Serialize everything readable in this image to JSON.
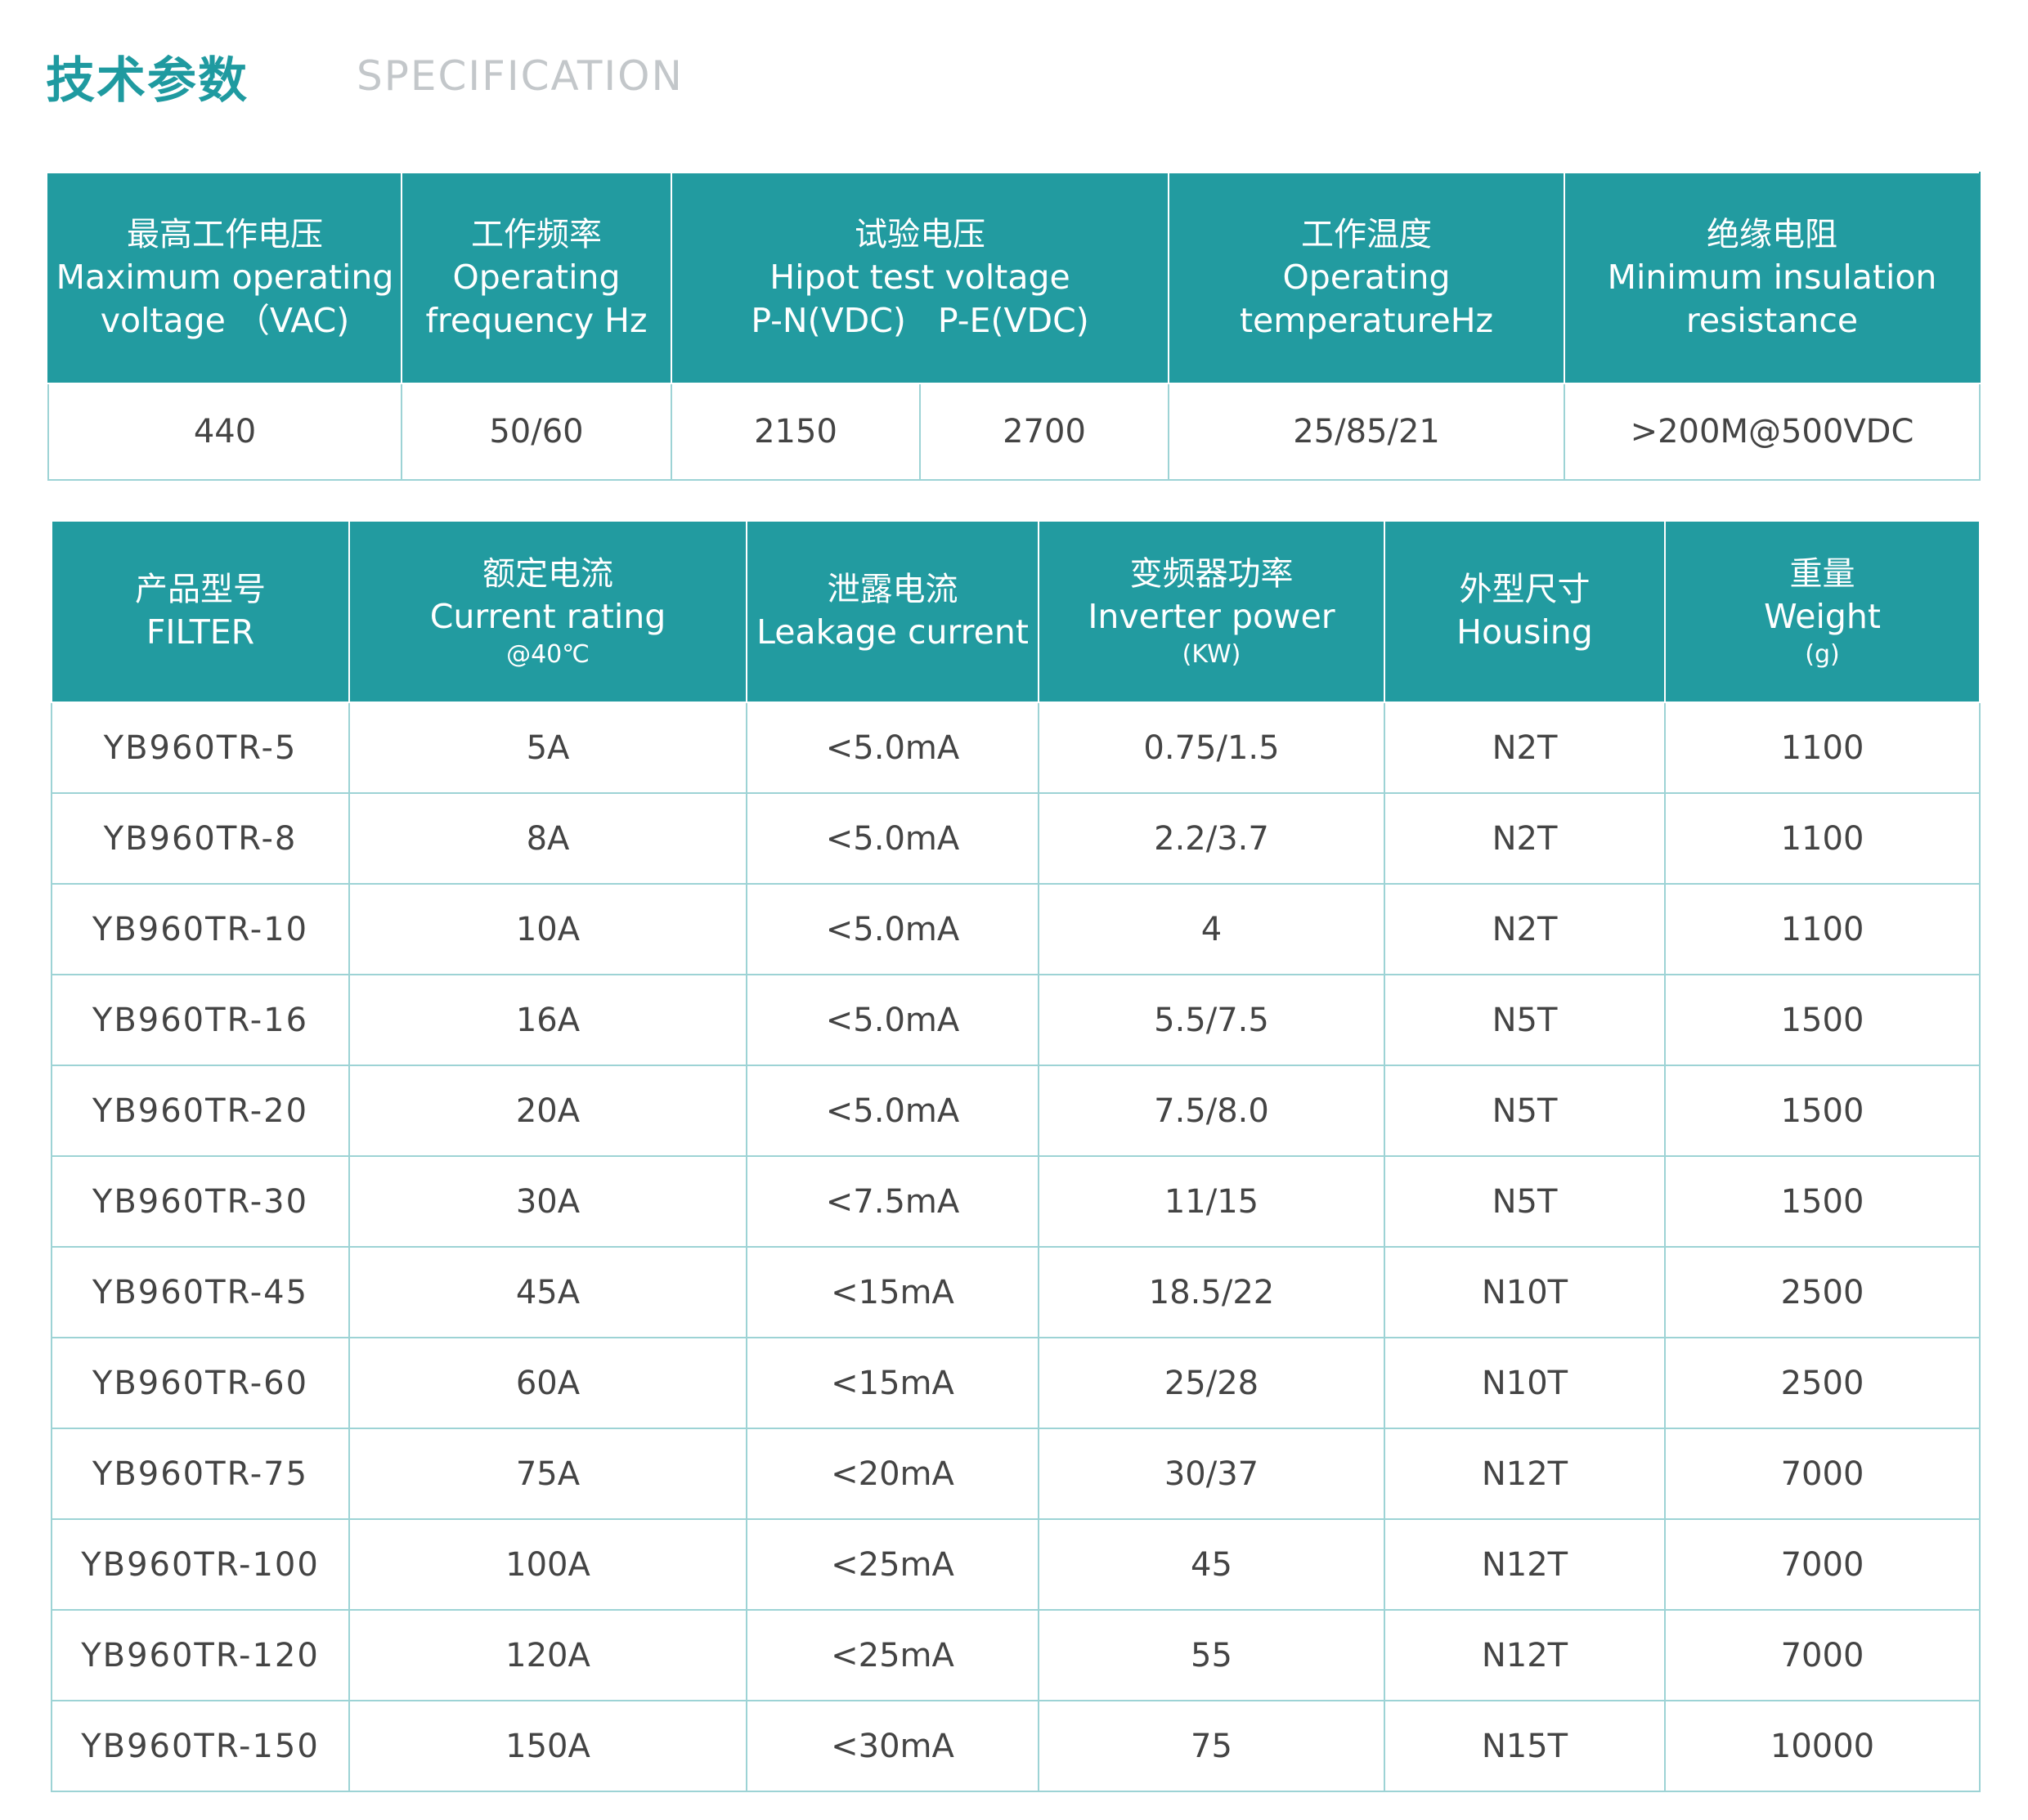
{
  "header": {
    "title_cn": "技术参数",
    "title_en": "SPECIFICATION"
  },
  "spec_table": {
    "headers": [
      {
        "cn": "最高工作电压",
        "en1": "Maximum operating",
        "en2": "voltage （VAC)"
      },
      {
        "cn": "工作频率",
        "en1": "Operating",
        "en2": "frequency Hz"
      },
      {
        "cn": "试验电压",
        "en1": "Hipot test voltage",
        "en2": "P-N(VDC)   P-E(VDC)"
      },
      {
        "cn": "工作温度",
        "en1": "Operating",
        "en2": "temperatureHz"
      },
      {
        "cn": "绝缘电阻",
        "en1": "Minimum insulation",
        "en2": "resistance"
      }
    ],
    "values": [
      "440",
      "50/60",
      "2150",
      "2700",
      "25/85/21",
      ">200M@500VDC"
    ]
  },
  "filter_table": {
    "headers": [
      {
        "cn": "产品型号",
        "en": "FILTER",
        "sub": ""
      },
      {
        "cn": "额定电流",
        "en": "Current rating",
        "sub": "@40℃"
      },
      {
        "cn": "泄露电流",
        "en": "Leakage current",
        "sub": ""
      },
      {
        "cn": "变频器功率",
        "en": "Inverter power",
        "sub": "(KW)"
      },
      {
        "cn": "外型尺寸",
        "en": "Housing",
        "sub": ""
      },
      {
        "cn": "重量",
        "en": "Weight",
        "sub": "(g)"
      }
    ],
    "rows": [
      [
        "YB960TR-5",
        "5A",
        "<5.0mA",
        "0.75/1.5",
        "N2T",
        "1100"
      ],
      [
        "YB960TR-8",
        "8A",
        "<5.0mA",
        "2.2/3.7",
        "N2T",
        "1100"
      ],
      [
        "YB960TR-10",
        "10A",
        "<5.0mA",
        "4",
        "N2T",
        "1100"
      ],
      [
        "YB960TR-16",
        "16A",
        "<5.0mA",
        "5.5/7.5",
        "N5T",
        "1500"
      ],
      [
        "YB960TR-20",
        "20A",
        "<5.0mA",
        "7.5/8.0",
        "N5T",
        "1500"
      ],
      [
        "YB960TR-30",
        "30A",
        "<7.5mA",
        "11/15",
        "N5T",
        "1500"
      ],
      [
        "YB960TR-45",
        "45A",
        "<15mA",
        "18.5/22",
        "N10T",
        "2500"
      ],
      [
        "YB960TR-60",
        "60A",
        "<15mA",
        "25/28",
        "N10T",
        "2500"
      ],
      [
        "YB960TR-75",
        "75A",
        "<20mA",
        "30/37",
        "N12T",
        "7000"
      ],
      [
        "YB960TR-100",
        "100A",
        "<25mA",
        "45",
        "N12T",
        "7000"
      ],
      [
        "YB960TR-120",
        "120A",
        "<25mA",
        "55",
        "N12T",
        "7000"
      ],
      [
        "YB960TR-150",
        "150A",
        "<30mA",
        "75",
        "N15T",
        "10000"
      ]
    ]
  },
  "colors": {
    "accent": "#229ba0",
    "title": "#1f9aa0",
    "subtitle": "#c3c7ca",
    "border": "#9dd3d5"
  }
}
